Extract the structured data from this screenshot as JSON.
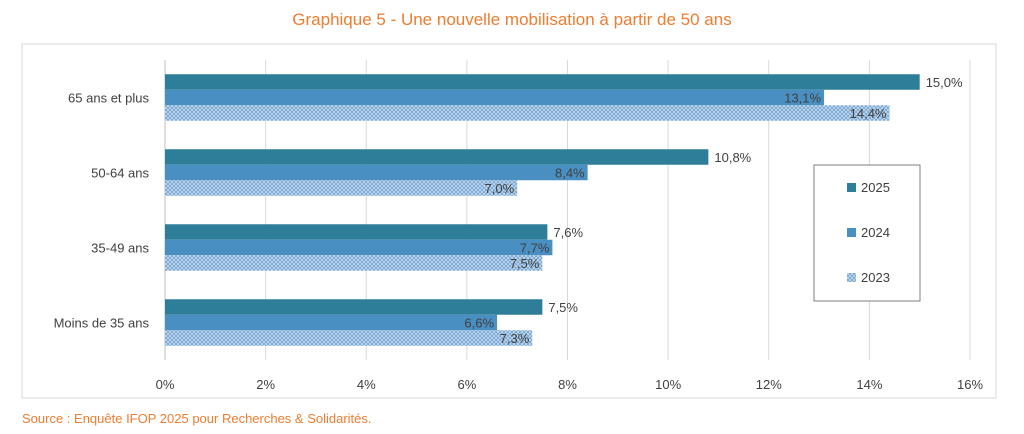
{
  "title": "Graphique 5 - Une nouvelle mobilisation à partir de 50 ans",
  "source": "Source : Enquête IFOP 2025 pour Recherches & Solidarités.",
  "chart_data": {
    "type": "bar",
    "orientation": "horizontal",
    "categories": [
      "65 ans et plus",
      "50-64 ans",
      "35-49 ans",
      "Moins de 35 ans"
    ],
    "series": [
      {
        "name": "2025",
        "values": [
          15.0,
          10.8,
          7.6,
          7.5
        ],
        "labels": [
          "15,0%",
          "10,8%",
          "7,6%",
          "7,5%"
        ],
        "color": "#2E7D99",
        "pattern": "solid"
      },
      {
        "name": "2024",
        "values": [
          13.1,
          8.4,
          7.7,
          6.6
        ],
        "labels": [
          "13,1%",
          "8,4%",
          "7,7%",
          "6,6%"
        ],
        "color": "#4A8FC2",
        "pattern": "solid"
      },
      {
        "name": "2023",
        "values": [
          14.4,
          7.0,
          7.5,
          7.3
        ],
        "labels": [
          "14,4%",
          "7,0%",
          "7,5%",
          "7,3%"
        ],
        "color": "#9CC3E4",
        "pattern": "crosshatch"
      }
    ],
    "xlim": [
      0,
      16
    ],
    "xticks": [
      0,
      2,
      4,
      6,
      8,
      10,
      12,
      14,
      16
    ],
    "xtick_labels": [
      "0%",
      "2%",
      "4%",
      "6%",
      "8%",
      "10%",
      "12%",
      "14%",
      "16%"
    ],
    "grid": true,
    "legend_position": "right"
  }
}
